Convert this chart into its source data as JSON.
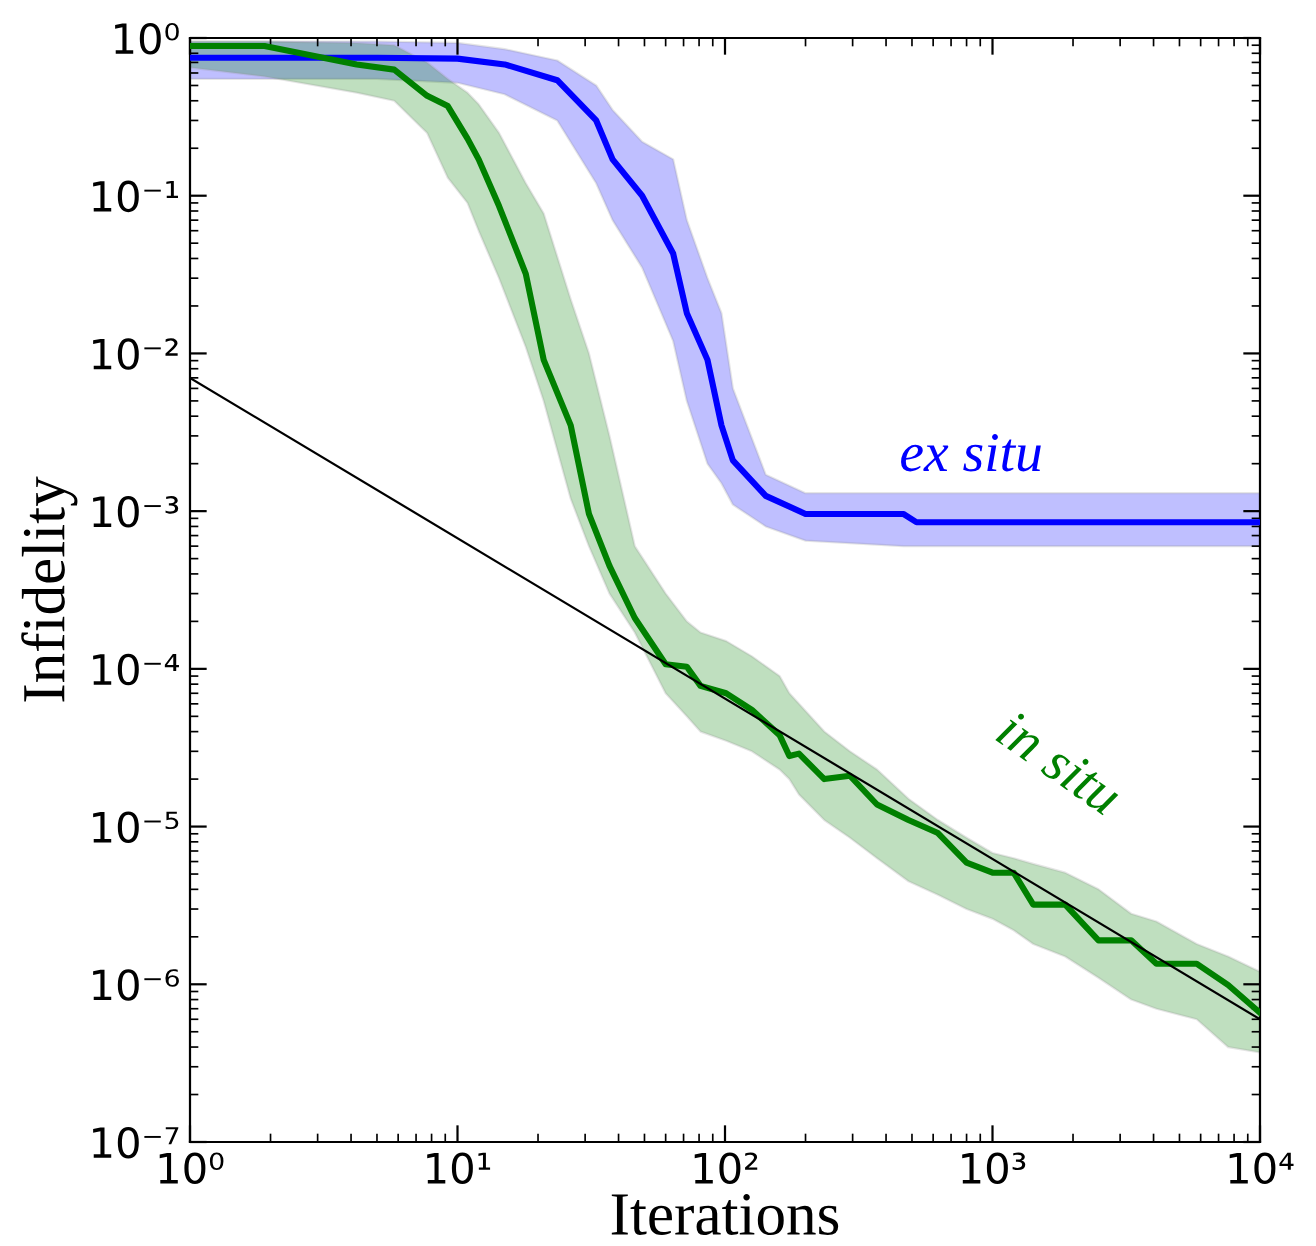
{
  "chart_data": {
    "type": "line",
    "xlabel": "Iterations",
    "ylabel": "Infidelity",
    "log": "xy",
    "grid": false,
    "legend": false,
    "marker": "none",
    "line_style": "solid",
    "xlim": [
      1,
      10000
    ],
    "ylim": [
      1e-07,
      1
    ],
    "xticks": [
      {
        "value": 1,
        "label": "10⁰"
      },
      {
        "value": 10,
        "label": "10¹"
      },
      {
        "value": 100,
        "label": "10²"
      },
      {
        "value": 1000,
        "label": "10³"
      },
      {
        "value": 10000,
        "label": "10⁴"
      }
    ],
    "yticks": [
      {
        "value": 1e-07,
        "label": "10⁻⁷"
      },
      {
        "value": 1e-06,
        "label": "10⁻⁶"
      },
      {
        "value": 1e-05,
        "label": "10⁻⁵"
      },
      {
        "value": 0.0001,
        "label": "10⁻⁴"
      },
      {
        "value": 0.001,
        "label": "10⁻³"
      },
      {
        "value": 0.01,
        "label": "10⁻²"
      },
      {
        "value": 0.1,
        "label": "10⁻¹"
      },
      {
        "value": 1,
        "label": "10⁰"
      }
    ],
    "series": [
      {
        "name": "ex situ",
        "color": "#0000ff",
        "x": [
          1,
          5,
          10,
          15,
          23.6,
          33,
          38,
          49,
          64,
          72,
          86,
          97,
          107,
          142,
          200,
          464,
          520,
          10000
        ],
        "values": [
          0.75,
          0.75,
          0.74,
          0.68,
          0.54,
          0.3,
          0.17,
          0.1,
          0.043,
          0.018,
          0.0091,
          0.0035,
          0.0021,
          0.00125,
          0.00096,
          0.00096,
          0.00085,
          0.00085
        ],
        "upper": [
          0.95,
          0.95,
          0.93,
          0.85,
          0.72,
          0.5,
          0.35,
          0.22,
          0.17,
          0.07,
          0.03,
          0.018,
          0.006,
          0.0017,
          0.0013,
          0.0013,
          0.0013,
          0.0013
        ],
        "lower": [
          0.55,
          0.55,
          0.52,
          0.44,
          0.3,
          0.12,
          0.07,
          0.035,
          0.012,
          0.005,
          0.002,
          0.0015,
          0.0011,
          0.0008,
          0.00065,
          0.0006,
          0.0006,
          0.0006
        ]
      },
      {
        "name": "in situ",
        "color": "#008000",
        "x": [
          1,
          1.9,
          4.2,
          5.8,
          7.7,
          9.2,
          10.9,
          12,
          14.3,
          18,
          21,
          26.5,
          31,
          37,
          46,
          60,
          72,
          81,
          101,
          126,
          160,
          174,
          189,
          235,
          293,
          370,
          485,
          625,
          800,
          1000,
          1200,
          1420,
          1870,
          2490,
          3300,
          4100,
          5800,
          7600,
          10000
        ],
        "values": [
          0.89,
          0.89,
          0.68,
          0.63,
          0.43,
          0.37,
          0.23,
          0.17,
          0.086,
          0.032,
          0.0091,
          0.0035,
          0.00096,
          0.00045,
          0.00021,
          0.000107,
          0.000103,
          7.8e-05,
          7e-05,
          5.5e-05,
          3.8e-05,
          2.8e-05,
          2.9e-05,
          2e-05,
          2.1e-05,
          1.38e-05,
          1.1e-05,
          9.1e-06,
          5.9e-06,
          5.1e-06,
          5.1e-06,
          3.2e-06,
          3.2e-06,
          1.9e-06,
          1.9e-06,
          1.35e-06,
          1.35e-06,
          9.9e-07,
          6.6e-07
        ],
        "upper": [
          0.95,
          0.95,
          0.93,
          0.9,
          0.7,
          0.55,
          0.45,
          0.38,
          0.25,
          0.12,
          0.077,
          0.022,
          0.01,
          0.003,
          0.0006,
          0.0003,
          0.0002,
          0.00017,
          0.00015,
          0.00012,
          9e-05,
          7e-05,
          6e-05,
          4e-05,
          3e-05,
          2.3e-05,
          1.5e-05,
          1.1e-05,
          8.5e-06,
          6.8e-06,
          6.3e-06,
          5.8e-06,
          5.1e-06,
          4e-06,
          2.8e-06,
          2.5e-06,
          1.8e-06,
          1.5e-06,
          1.2e-06
        ],
        "lower": [
          0.65,
          0.57,
          0.45,
          0.4,
          0.25,
          0.13,
          0.09,
          0.06,
          0.03,
          0.011,
          0.005,
          0.0012,
          0.0006,
          0.0003,
          0.00017,
          7e-05,
          5e-05,
          4e-05,
          3.5e-05,
          3e-05,
          2.3e-05,
          2e-05,
          1.6e-05,
          1.1e-05,
          8.5e-06,
          6.3e-06,
          4.5e-06,
          3.7e-06,
          3e-06,
          2.6e-06,
          2.2e-06,
          1.8e-06,
          1.5e-06,
          1.1e-06,
          8e-07,
          7e-07,
          6e-07,
          4e-07,
          3.7e-07
        ]
      },
      {
        "color": "#000000",
        "x": [
          1,
          10000
        ],
        "values": [
          0.007,
          6e-07
        ]
      }
    ]
  }
}
